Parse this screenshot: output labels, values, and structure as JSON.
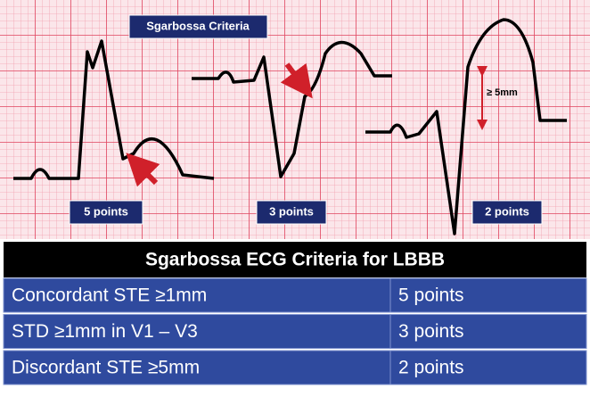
{
  "figure": {
    "title": "Sgarbossa Criteria",
    "panels": [
      {
        "label": "5 points"
      },
      {
        "label": "3 points"
      },
      {
        "label": "2 points",
        "annotation": "≥ 5mm"
      }
    ]
  },
  "table": {
    "title": "Sgarbossa ECG Criteria for LBBB",
    "rows": [
      [
        "Concordant STE ≥1mm",
        "5 points"
      ],
      [
        "STD ≥1mm in V1 – V3",
        "3 points"
      ],
      [
        "Discordant STE ≥5mm",
        "2 points"
      ]
    ]
  }
}
